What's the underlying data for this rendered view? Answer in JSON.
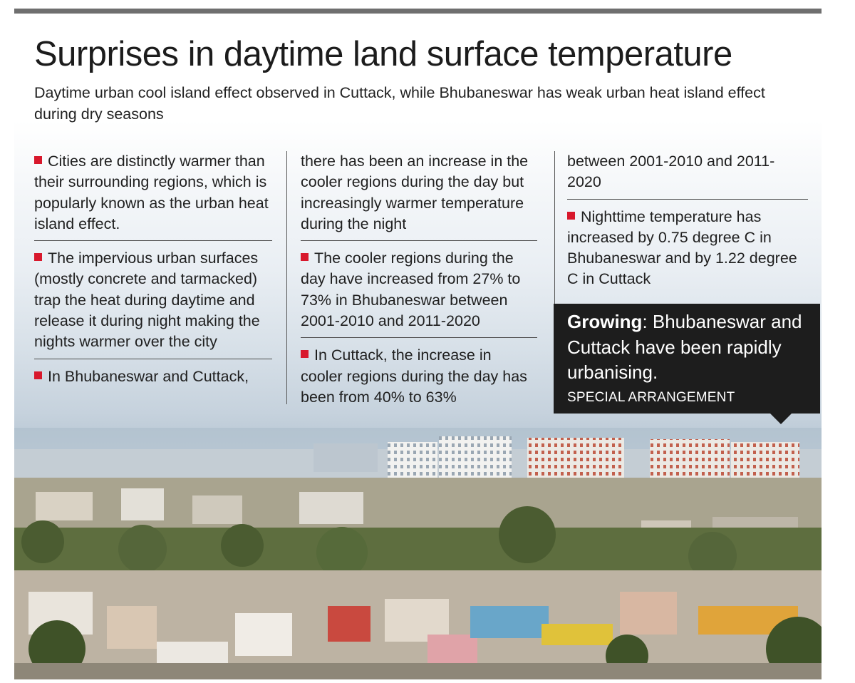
{
  "title": "Surprises in daytime land surface temperature",
  "subtitle": "Daytime urban cool island effect observed in Cuttack, while Bhubaneswar has weak urban heat island effect during dry seasons",
  "columns": {
    "col1": {
      "point1": "Cities are distinctly warmer than their surrounding regions, which is popularly known as the urban heat island effect.",
      "point2": "The impervious urban surfaces (mostly concrete and tarmacked) trap the heat during daytime and release it during night making the nights warmer over the city",
      "point3_start": "In Bhubaneswar and Cuttack,"
    },
    "col2": {
      "point3_cont": "there has been an increase in the cooler regions during the day but increasingly warmer temperature during the night",
      "point4": "The cooler regions during the day have increased from 27% to 73% in Bhubaneswar between 2001-2010 and 2011-2020",
      "point5_start": "In Cuttack, the increase in cooler regions during the day has been from 40% to 63%"
    },
    "col3": {
      "point5_cont": "between 2001-2010 and 2011-2020",
      "point6": "Nighttime temperature has increased by 0.75 degree C in Bhubaneswar and by 1.22 degree C in Cuttack"
    }
  },
  "caption": {
    "label": "Growing",
    "text": ": Bhubaneswar and Cuttack have been rapidly urbanising.",
    "credit": "SPECIAL ARRANGEMENT"
  },
  "colors": {
    "bullet": "#d8182c",
    "caption_bg": "#1d1d1d",
    "rule": "#6f6f6f"
  },
  "photo": {
    "icon": "city-skyline-photo"
  }
}
